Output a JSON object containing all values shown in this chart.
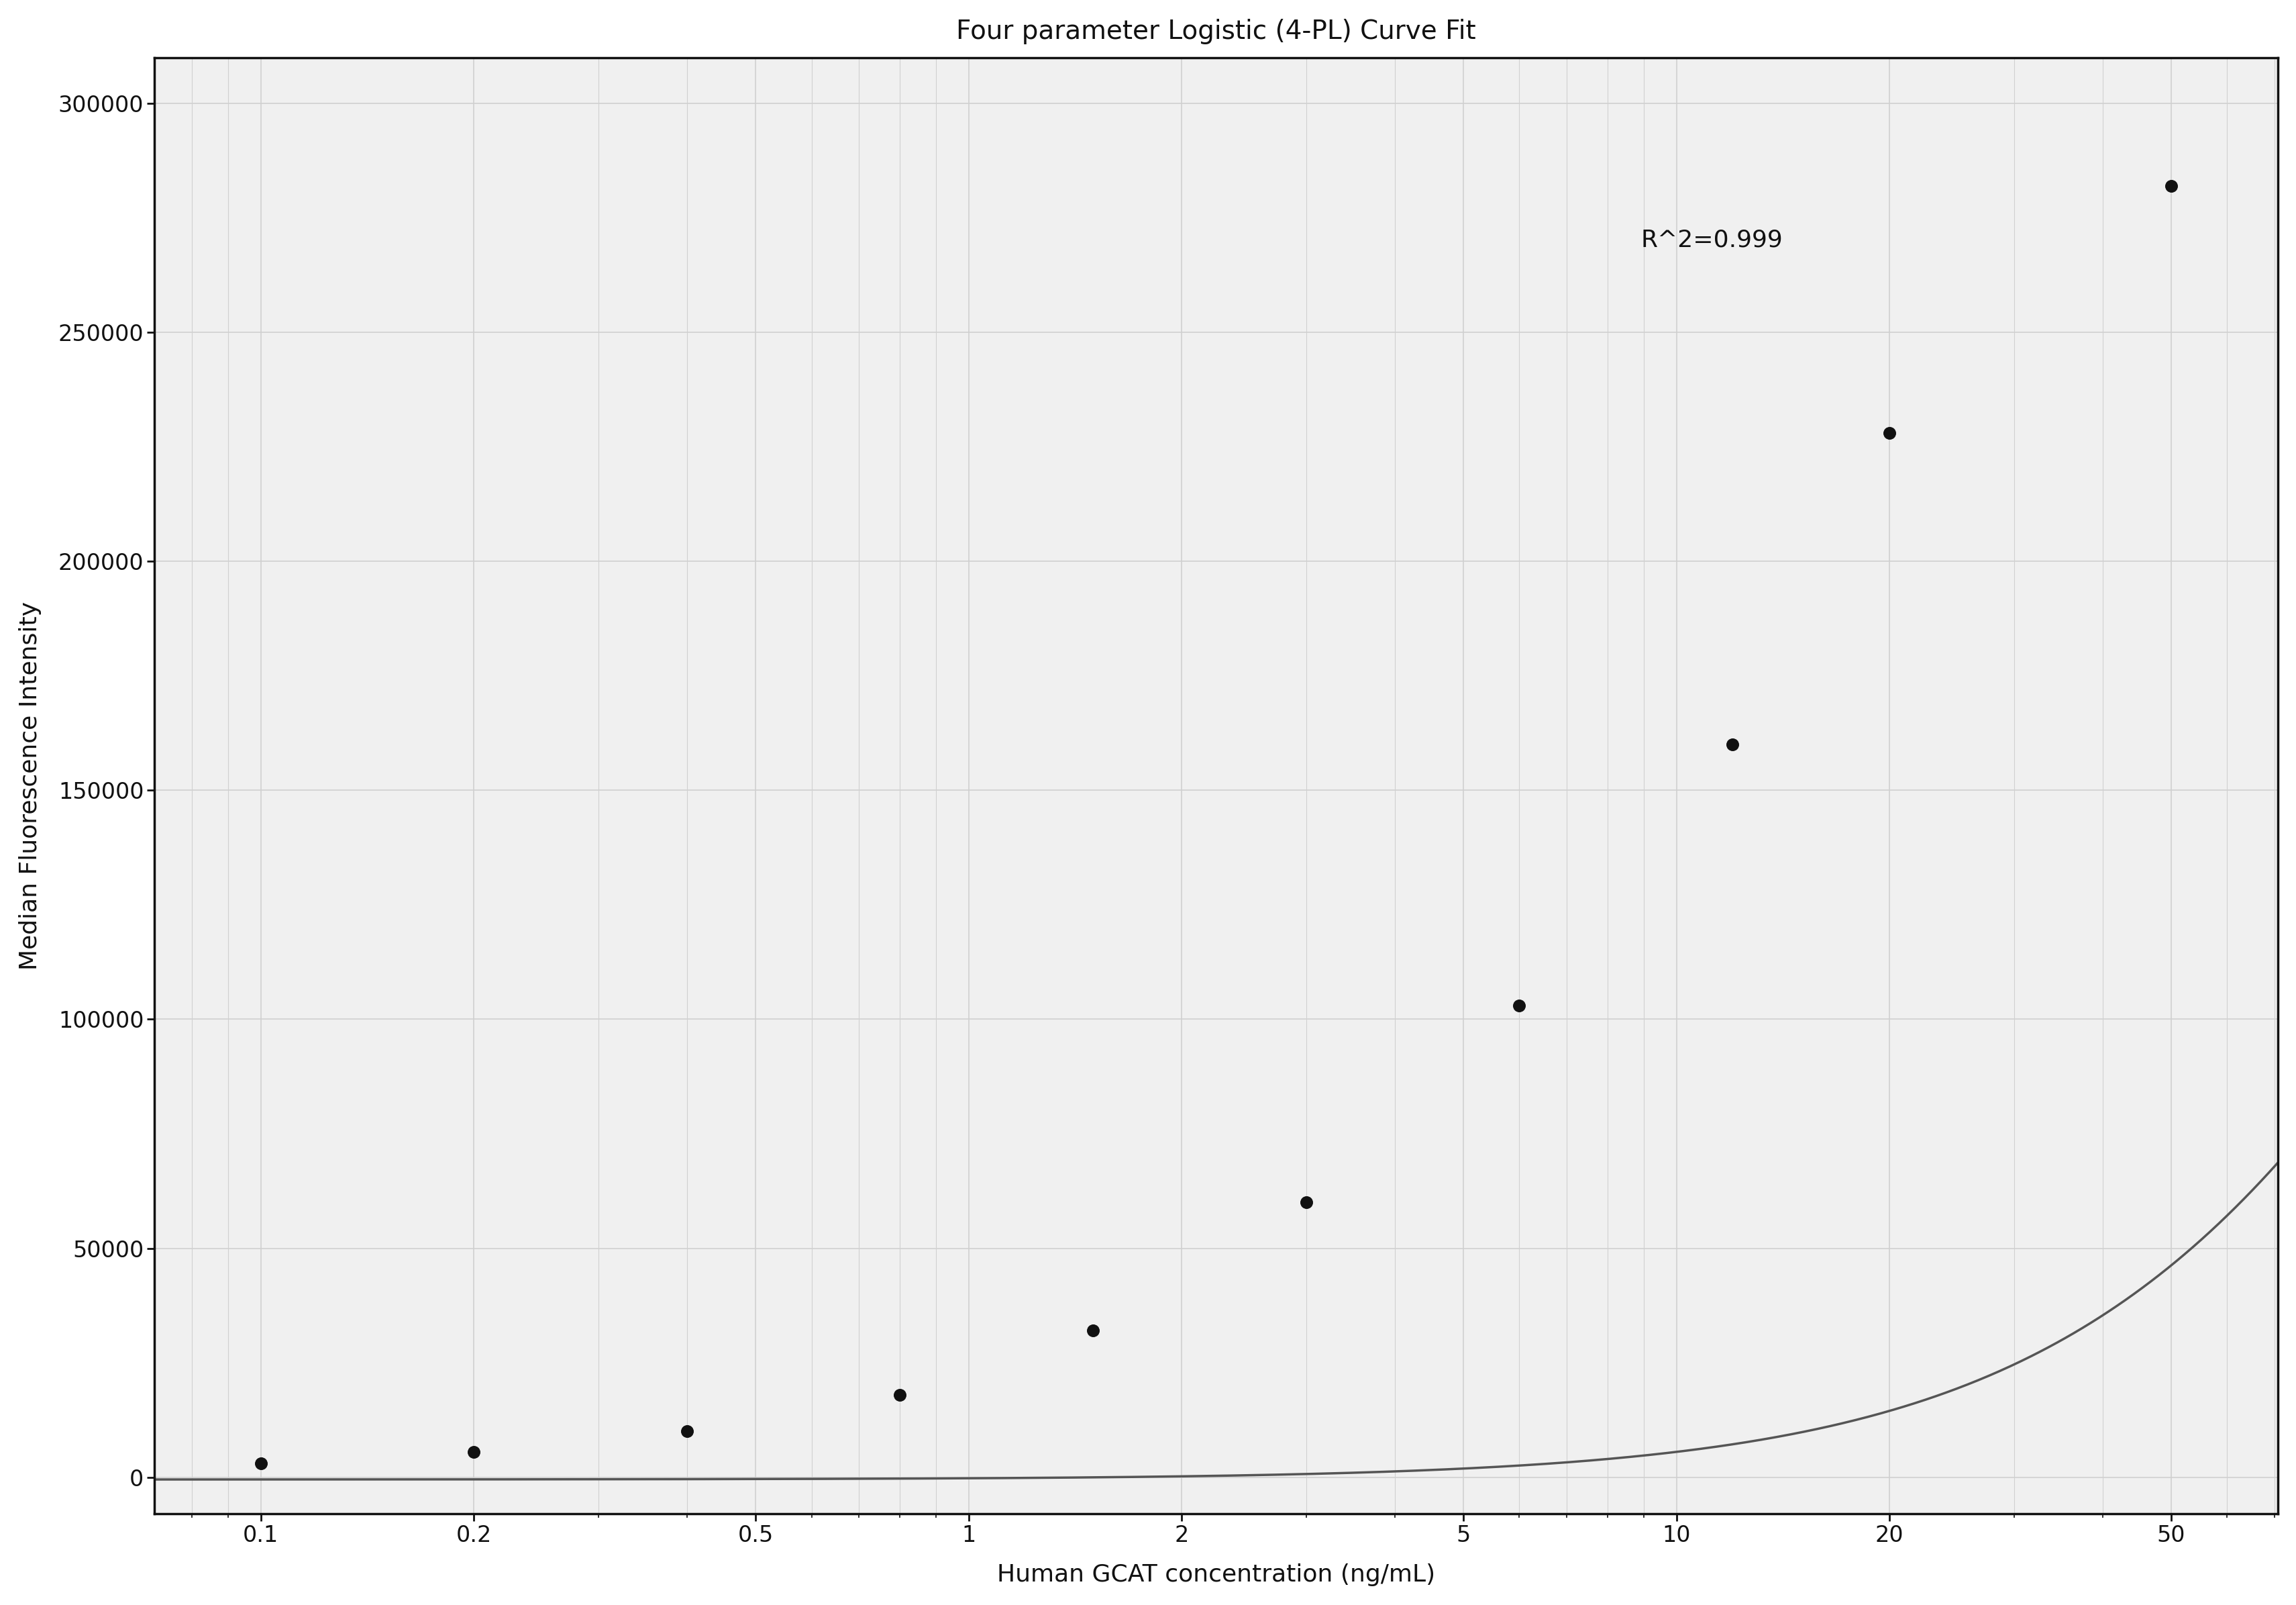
{
  "title": "Four parameter Logistic (4-PL) Curve Fit",
  "xlabel": "Human GCAT concentration (ng/mL)",
  "ylabel": "Median Fluorescence Intensity",
  "annotation": "R^2=0.999",
  "data_x": [
    0.1,
    0.2,
    0.4,
    0.8,
    1.5,
    3.0,
    6.0,
    12.0,
    20.0,
    50.0
  ],
  "data_y": [
    3000,
    5500,
    10000,
    18000,
    32000,
    60000,
    103000,
    160000,
    228000,
    282000
  ],
  "xlim_log": [
    -1.15,
    1.85
  ],
  "ylim": [
    -8000,
    310000
  ],
  "yticks": [
    0,
    50000,
    100000,
    150000,
    200000,
    250000,
    300000
  ],
  "xticks_major": [
    0.1,
    0.2,
    0.5,
    1,
    2,
    5,
    10,
    20,
    50
  ],
  "xtick_labels": [
    "0.1",
    "0.2",
    "0.5",
    "1",
    "2",
    "5",
    "10",
    "20",
    "50"
  ],
  "line_color": "#555555",
  "marker_color": "#111111",
  "grid_color": "#d0d0d0",
  "background_color": "#f0f0f0",
  "plot_bg_color": "#f0f0f0",
  "title_fontsize": 28,
  "label_fontsize": 26,
  "tick_fontsize": 24,
  "annotation_fontsize": 26,
  "4pl_A": -500,
  "4pl_B": 1.35,
  "4pl_C": 200.0,
  "4pl_D": 350000
}
